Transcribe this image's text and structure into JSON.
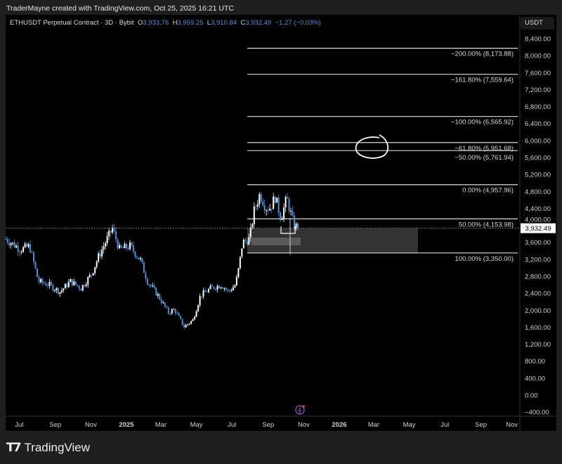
{
  "credit": "TraderMayne created with TradingView.com, Oct 25, 2025 16:21 UTC",
  "legend": {
    "symbol": "ETHUSDT Perpetual Contract · 3D · Bybit",
    "o_label": "O",
    "o": "3,933.76",
    "h_label": "H",
    "h": "3,959.25",
    "l_label": "L",
    "l": "3,910.84",
    "c_label": "C",
    "c": "3,932.49",
    "change": "−1.27 (−0.03%)"
  },
  "currency_button": "USDT",
  "current_price_label": "3,932.49",
  "brand": "TradingView",
  "colors": {
    "up": "#ffffff",
    "down": "#4f8fd8",
    "background": "#000000",
    "fib": "#d9d9d9",
    "zone": "#333333",
    "zone_inner": "#5a5a5a"
  },
  "chart_data": {
    "type": "candlestick",
    "title": "",
    "ylim": [
      -400,
      8400
    ],
    "y_ticks": [
      "8,400.00",
      "8,000.00",
      "7,600.00",
      "7,200.00",
      "6,800.00",
      "6,400.00",
      "6,000.00",
      "5,600.00",
      "5,200.00",
      "4,800.00",
      "4,400.00",
      "4,000.00",
      "3,600.00",
      "3,200.00",
      "2,800.00",
      "2,400.00",
      "2,000.00",
      "1,600.00",
      "1,200.00",
      "800.00",
      "400.00",
      "0.00",
      "−400.00"
    ],
    "y_tick_values": [
      8400,
      8000,
      7600,
      7200,
      6800,
      6400,
      6000,
      5600,
      5200,
      4800,
      4400,
      4000,
      3600,
      3200,
      2800,
      2400,
      2000,
      1600,
      1200,
      800,
      400,
      0,
      -400
    ],
    "x_ticks": [
      "Jul",
      "Sep",
      "Nov",
      "2025",
      "Mar",
      "May",
      "Jul",
      "Sep",
      "Nov",
      "2026",
      "Mar",
      "May",
      "Jul",
      "Sep",
      "Nov"
    ],
    "x_tick_dates": [
      "2024-07-01",
      "2024-09-01",
      "2024-11-01",
      "2025-01-01",
      "2025-03-01",
      "2025-05-01",
      "2025-07-01",
      "2025-09-01",
      "2025-11-01",
      "2026-01-01",
      "2026-03-01",
      "2026-05-01",
      "2026-07-01",
      "2026-09-01",
      "2026-11-01"
    ],
    "interval": "3D",
    "price_path": [
      [
        "2024-06-08",
        3680
      ],
      [
        "2024-07-04",
        3430
      ],
      [
        "2024-07-19",
        3510
      ],
      [
        "2024-08-03",
        2680
      ],
      [
        "2024-08-21",
        2600
      ],
      [
        "2024-09-09",
        2435
      ],
      [
        "2024-09-27",
        2680
      ],
      [
        "2024-10-15",
        2520
      ],
      [
        "2024-11-02",
        2850
      ],
      [
        "2024-11-14",
        3260
      ],
      [
        "2024-12-08",
        3930
      ],
      [
        "2024-12-20",
        3430
      ],
      [
        "2025-01-07",
        3510
      ],
      [
        "2025-01-25",
        3180
      ],
      [
        "2025-02-06",
        2680
      ],
      [
        "2025-02-24",
        2350
      ],
      [
        "2025-03-14",
        1940
      ],
      [
        "2025-03-24",
        2020
      ],
      [
        "2025-04-10",
        1610
      ],
      [
        "2025-04-25",
        1770
      ],
      [
        "2025-05-08",
        2350
      ],
      [
        "2025-05-26",
        2520
      ],
      [
        "2025-06-13",
        2600
      ],
      [
        "2025-06-25",
        2435
      ],
      [
        "2025-07-07",
        2600
      ],
      [
        "2025-07-13",
        3020
      ],
      [
        "2025-07-19",
        3600
      ],
      [
        "2025-07-31",
        3680
      ],
      [
        "2025-08-08",
        4340
      ],
      [
        "2025-08-18",
        4750
      ],
      [
        "2025-08-28",
        4420
      ],
      [
        "2025-09-05",
        4420
      ],
      [
        "2025-09-13",
        4670
      ],
      [
        "2025-09-23",
        4170
      ],
      [
        "2025-10-03",
        4640
      ],
      [
        "2025-10-15",
        4010
      ],
      [
        "2025-10-23",
        3932.49
      ]
    ],
    "current_price": 3932.49,
    "fib_levels": [
      {
        "label": "−200.00% (8,173.88)",
        "price": 8173.88
      },
      {
        "label": "−161.80% (7,559.64)",
        "price": 7559.64
      },
      {
        "label": "−100.00% (6,565.92)",
        "price": 6565.92
      },
      {
        "label": "−61.80% (5,951.68)",
        "price": 5951.68
      },
      {
        "label": "−50.00% (5,761.94)",
        "price": 5761.94
      },
      {
        "label": "0.00% (4,957.96)",
        "price": 4957.96
      },
      {
        "label": "50.00% (4,153.98)",
        "price": 4153.98
      },
      {
        "label": "100.00% (3,350.00)",
        "price": 3350.0
      }
    ]
  }
}
